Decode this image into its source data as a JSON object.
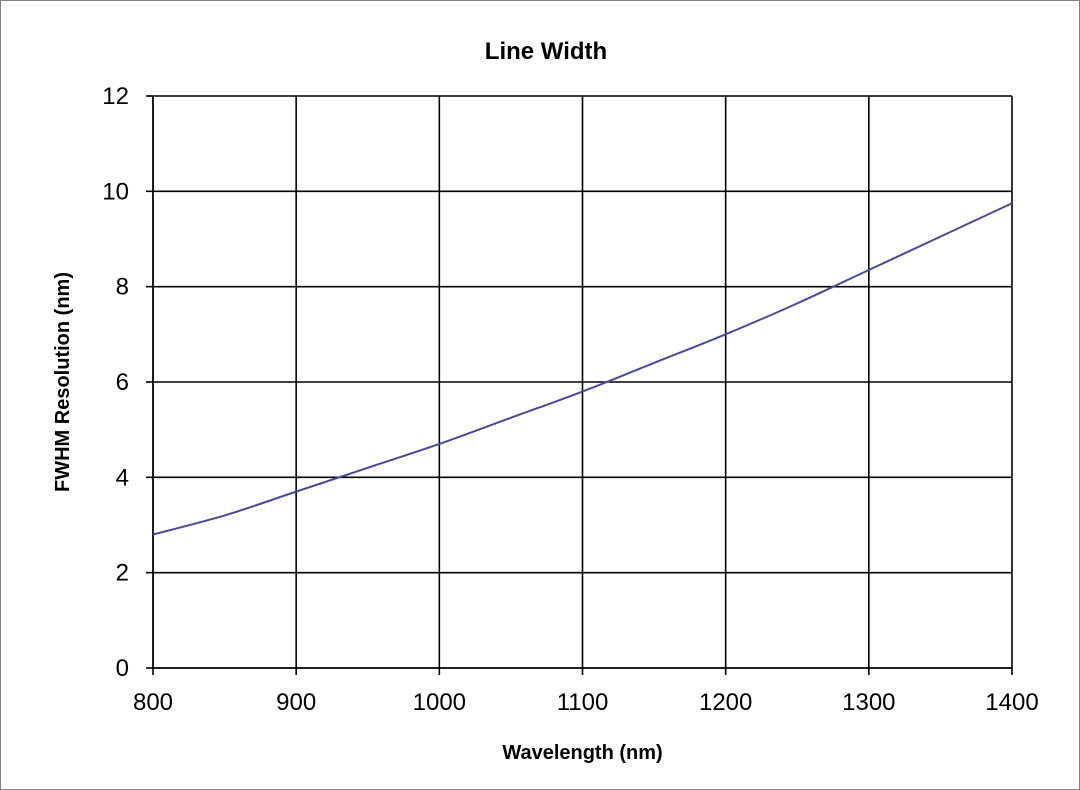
{
  "chart_data": {
    "type": "line",
    "title": "Line Width",
    "xlabel": "Wavelength (nm)",
    "ylabel": "FWHM Resolution (nm)",
    "xlim": [
      800,
      1400
    ],
    "ylim": [
      0,
      12
    ],
    "xticks": [
      800,
      900,
      1000,
      1100,
      1200,
      1300,
      1400
    ],
    "yticks": [
      0,
      2,
      4,
      6,
      8,
      10,
      12
    ],
    "grid": true,
    "legend": "none",
    "series": [
      {
        "color": "#4a4a9c",
        "x": [
          800,
          850,
          900,
          950,
          1000,
          1050,
          1100,
          1150,
          1200,
          1250,
          1300,
          1350,
          1400
        ],
        "y": [
          2.8,
          3.2,
          3.7,
          4.2,
          4.7,
          5.25,
          5.8,
          6.4,
          7.0,
          7.65,
          8.35,
          9.05,
          9.75
        ]
      }
    ]
  }
}
